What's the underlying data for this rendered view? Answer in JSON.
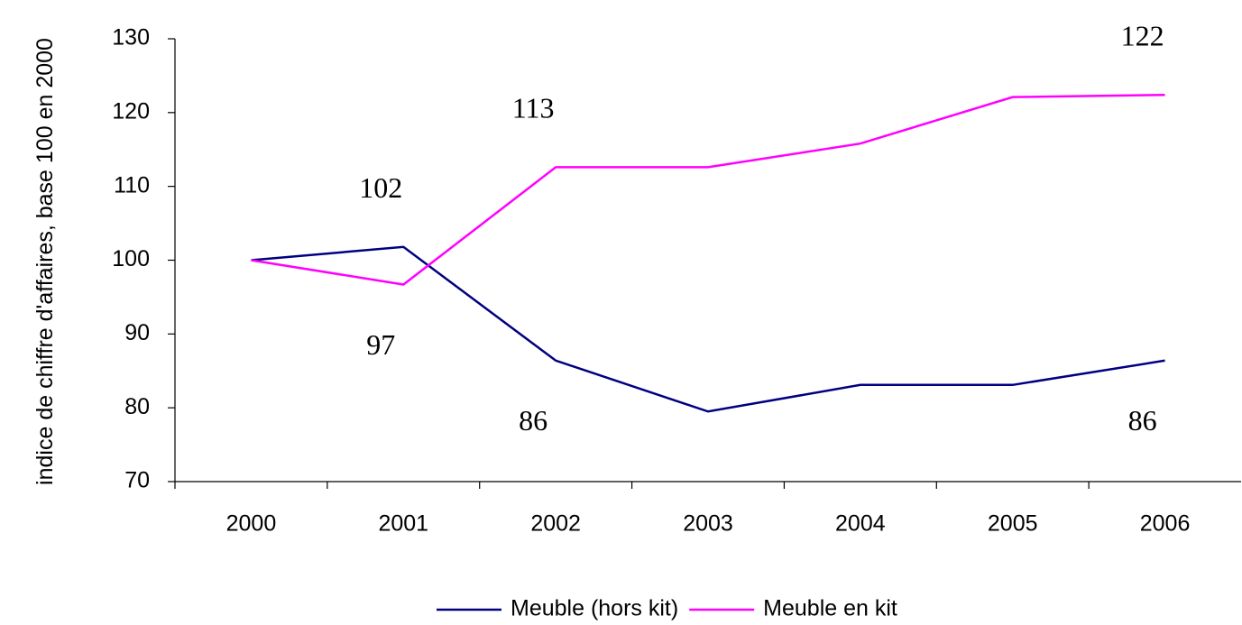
{
  "chart_data": {
    "type": "line",
    "y_label": "indice de chiffre d'affaires, base 100 en 2000",
    "categories": [
      "2000",
      "2001",
      "2002",
      "2003",
      "2004",
      "2005",
      "2006"
    ],
    "series": [
      {
        "name": "Meuble (hors kit)",
        "color": "#000080",
        "values": [
          100,
          101.8,
          86.4,
          79.5,
          83.1,
          83.1,
          86.4
        ],
        "value_labels": [
          null,
          "102",
          "86",
          null,
          null,
          null,
          "86"
        ]
      },
      {
        "name": "Meuble en kit",
        "color": "#ff00ff",
        "values": [
          100,
          96.7,
          112.6,
          112.6,
          115.8,
          122.1,
          122.4
        ],
        "value_labels": [
          null,
          "97",
          "113",
          null,
          null,
          null,
          "122"
        ]
      }
    ],
    "ylim": [
      70,
      130
    ],
    "yticks": [
      70,
      80,
      90,
      100,
      110,
      120,
      130
    ],
    "grid": false,
    "legend": "bottom"
  }
}
